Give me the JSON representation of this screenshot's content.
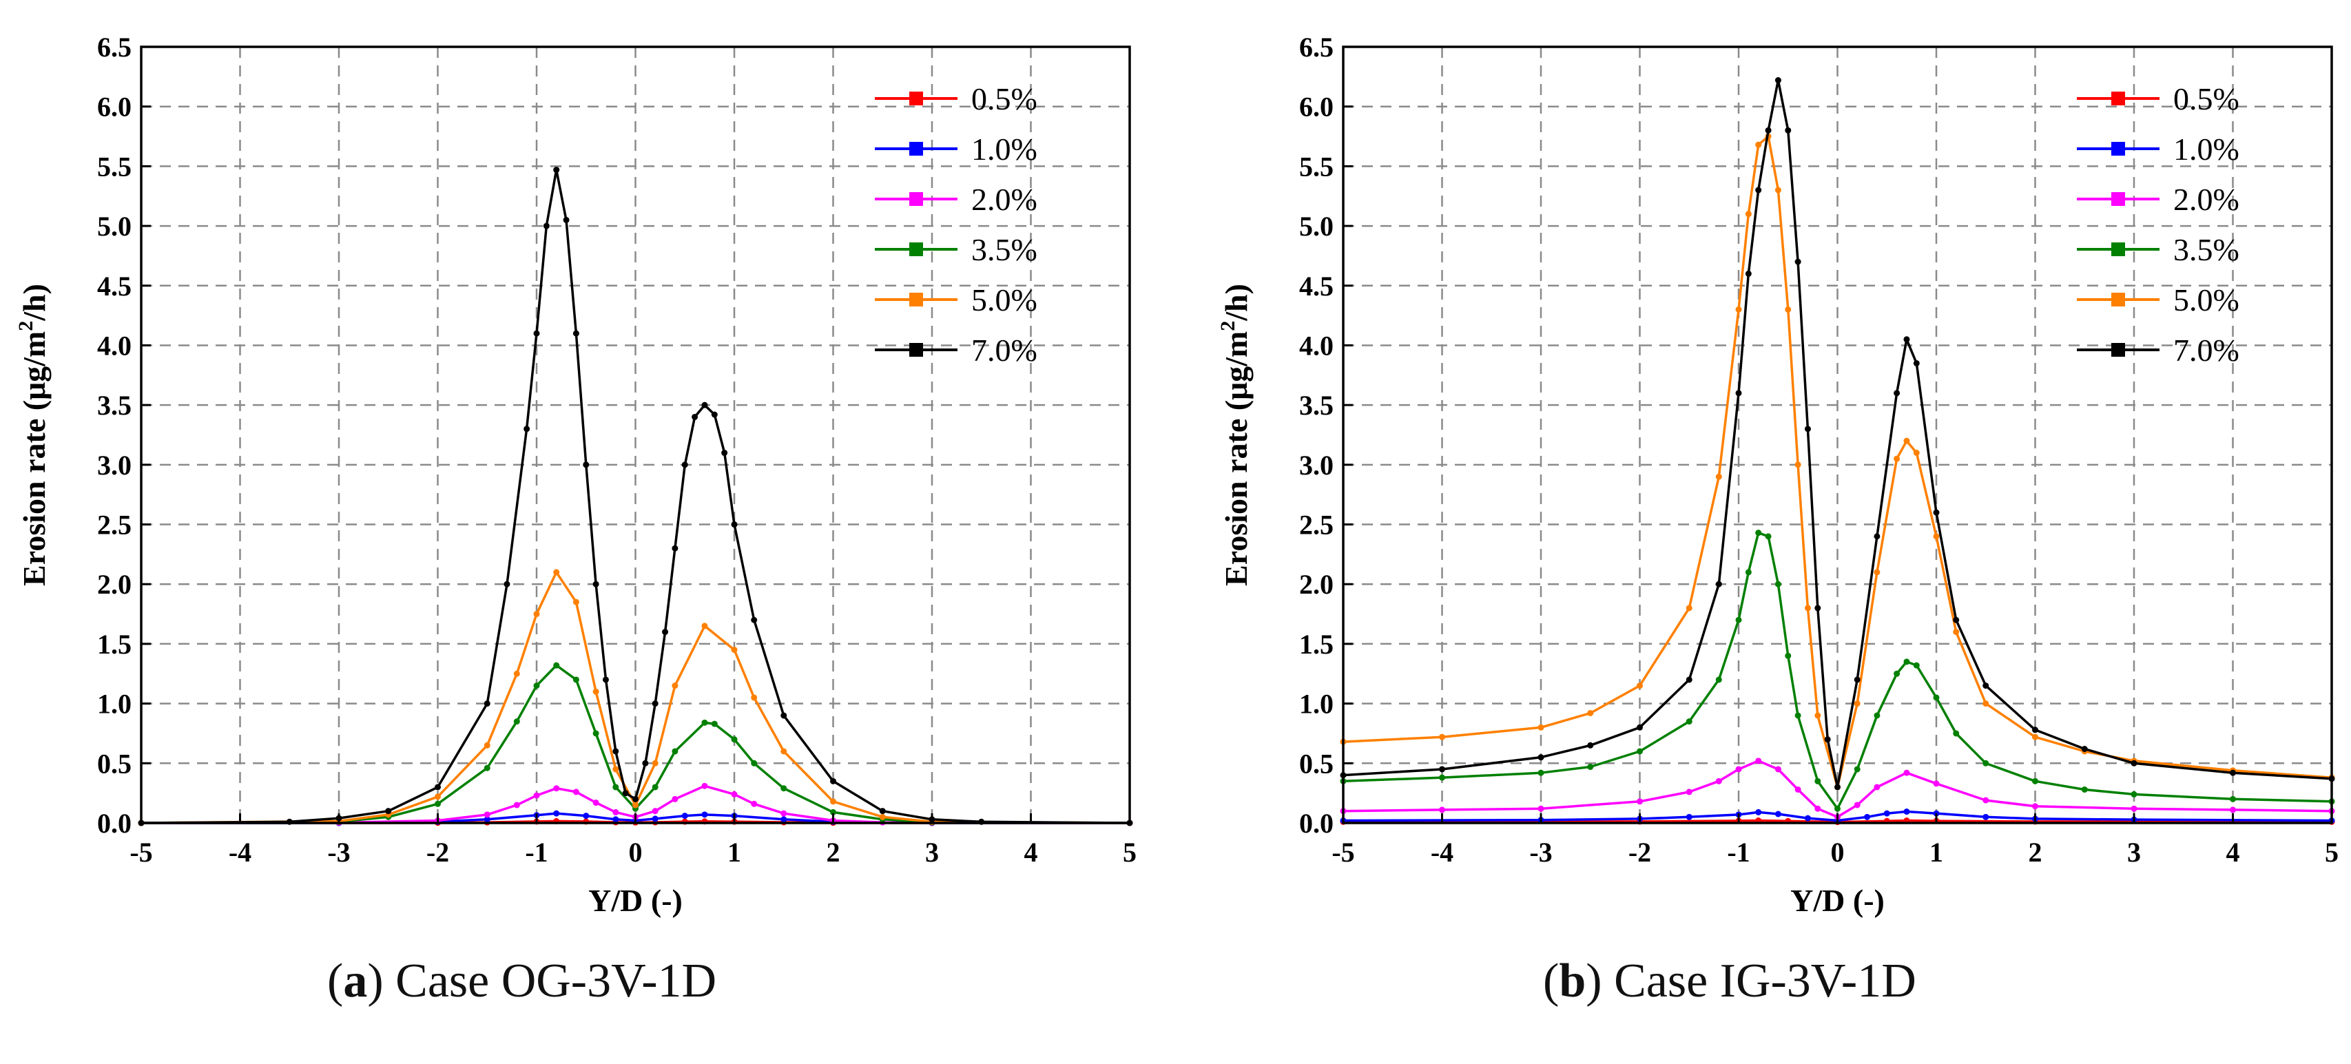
{
  "captions": [
    {
      "letter": "a",
      "open": "(",
      "close": ")",
      "text": " Case OG-3V-1D"
    },
    {
      "letter": "b",
      "open": "(",
      "close": ")",
      "text": " Case IG-3V-1D"
    }
  ],
  "colors": {
    "0.5%": "#ff0000",
    "1.0%": "#0000ff",
    "2.0%": "#ff00ff",
    "3.5%": "#008000",
    "5.0%": "#ff8000",
    "7.0%": "#000000"
  },
  "chart_data": [
    {
      "type": "line",
      "xlabel": "Y/D (-)",
      "ylabel_main": "Erosion rate (μg/m",
      "ylabel_sup": "2",
      "ylabel_tail": "/h)",
      "xlim": [
        -5,
        5
      ],
      "ylim": [
        0,
        6.5
      ],
      "xticks": [
        "-5",
        "-4",
        "-3",
        "-2",
        "-1",
        "0",
        "1",
        "2",
        "3",
        "4",
        "5"
      ],
      "yticks": [
        "0.0",
        "0.5",
        "1.0",
        "1.5",
        "2.0",
        "2.5",
        "3.0",
        "3.5",
        "4.0",
        "4.5",
        "5.0",
        "5.5",
        "6.0",
        "6.5"
      ],
      "grid": true,
      "legend": "top-right",
      "series": [
        {
          "name": "0.5%",
          "x": [
            -5,
            -3,
            -2,
            -1.5,
            -1,
            -0.8,
            -0.5,
            -0.2,
            0,
            0.2,
            0.5,
            0.7,
            1,
            1.5,
            2,
            3,
            5
          ],
          "y": [
            0,
            0,
            0.002,
            0.005,
            0.012,
            0.015,
            0.012,
            0.006,
            0.004,
            0.006,
            0.011,
            0.013,
            0.011,
            0.006,
            0.002,
            0,
            0
          ]
        },
        {
          "name": "1.0%",
          "x": [
            -5,
            -3,
            -2,
            -1.5,
            -1,
            -0.8,
            -0.5,
            -0.2,
            0,
            0.2,
            0.5,
            0.7,
            1,
            1.5,
            2,
            3,
            5
          ],
          "y": [
            0,
            0,
            0.01,
            0.03,
            0.065,
            0.08,
            0.06,
            0.03,
            0.02,
            0.035,
            0.06,
            0.07,
            0.06,
            0.03,
            0.01,
            0,
            0
          ]
        },
        {
          "name": "2.0%",
          "x": [
            -5,
            -3,
            -2,
            -1.5,
            -1.2,
            -1,
            -0.8,
            -0.6,
            -0.4,
            -0.2,
            0,
            0.2,
            0.4,
            0.7,
            1,
            1.2,
            1.5,
            2,
            2.5,
            3,
            5
          ],
          "y": [
            0,
            0.003,
            0.02,
            0.07,
            0.15,
            0.23,
            0.29,
            0.26,
            0.17,
            0.09,
            0.05,
            0.1,
            0.2,
            0.31,
            0.24,
            0.16,
            0.08,
            0.02,
            0.005,
            0.002,
            0
          ]
        },
        {
          "name": "3.5%",
          "x": [
            -5,
            -3,
            -2.5,
            -2,
            -1.5,
            -1.2,
            -1,
            -0.8,
            -0.6,
            -0.4,
            -0.2,
            0,
            0.2,
            0.4,
            0.7,
            0.8,
            1,
            1.2,
            1.5,
            2,
            2.5,
            3,
            5
          ],
          "y": [
            0,
            0.01,
            0.05,
            0.16,
            0.46,
            0.85,
            1.15,
            1.32,
            1.2,
            0.75,
            0.3,
            0.12,
            0.3,
            0.6,
            0.84,
            0.83,
            0.7,
            0.5,
            0.29,
            0.09,
            0.03,
            0.005,
            0
          ]
        },
        {
          "name": "5.0%",
          "x": [
            -5,
            -3,
            -2.5,
            -2,
            -1.5,
            -1.2,
            -1,
            -0.8,
            -0.6,
            -0.4,
            -0.2,
            0,
            0.2,
            0.4,
            0.7,
            1,
            1.2,
            1.5,
            2,
            2.5,
            3,
            5
          ],
          "y": [
            0,
            0.015,
            0.07,
            0.22,
            0.65,
            1.25,
            1.75,
            2.1,
            1.85,
            1.1,
            0.45,
            0.15,
            0.5,
            1.15,
            1.65,
            1.45,
            1.05,
            0.6,
            0.18,
            0.05,
            0.01,
            0
          ]
        },
        {
          "name": "7.0%",
          "x": [
            -5,
            -3.5,
            -3,
            -2.5,
            -2,
            -1.5,
            -1.3,
            -1.1,
            -1,
            -0.9,
            -0.8,
            -0.7,
            -0.6,
            -0.5,
            -0.4,
            -0.3,
            -0.2,
            -0.1,
            0,
            0.1,
            0.2,
            0.3,
            0.4,
            0.5,
            0.6,
            0.7,
            0.8,
            0.9,
            1,
            1.2,
            1.5,
            2,
            2.5,
            3,
            3.5,
            5
          ],
          "y": [
            0,
            0.01,
            0.04,
            0.1,
            0.3,
            1.0,
            2.0,
            3.3,
            4.1,
            5.0,
            5.47,
            5.05,
            4.1,
            3.0,
            2.0,
            1.2,
            0.6,
            0.25,
            0.2,
            0.5,
            1.0,
            1.6,
            2.3,
            3.0,
            3.4,
            3.5,
            3.42,
            3.1,
            2.5,
            1.7,
            0.9,
            0.35,
            0.1,
            0.03,
            0.01,
            0
          ]
        }
      ]
    },
    {
      "type": "line",
      "xlabel": "Y/D (-)",
      "ylabel_main": "Erosion rate (μg/m",
      "ylabel_sup": "2",
      "ylabel_tail": "/h)",
      "xlim": [
        -5,
        5
      ],
      "ylim": [
        0,
        6.5
      ],
      "xticks": [
        "-5",
        "-4",
        "-3",
        "-2",
        "-1",
        "0",
        "1",
        "2",
        "3",
        "4",
        "5"
      ],
      "yticks": [
        "0.0",
        "0.5",
        "1.0",
        "1.5",
        "2.0",
        "2.5",
        "3.0",
        "3.5",
        "4.0",
        "4.5",
        "5.0",
        "5.5",
        "6.0",
        "6.5"
      ],
      "grid": true,
      "legend": "top-right",
      "series": [
        {
          "name": "0.5%",
          "x": [
            -5,
            -2,
            -1,
            -0.8,
            -0.5,
            0,
            0.5,
            0.7,
            1,
            2,
            5
          ],
          "y": [
            0.01,
            0.012,
            0.018,
            0.02,
            0.016,
            0.008,
            0.016,
            0.02,
            0.017,
            0.012,
            0.01
          ]
        },
        {
          "name": "1.0%",
          "x": [
            -5,
            -3,
            -2,
            -1.5,
            -1,
            -0.8,
            -0.6,
            -0.3,
            0,
            0.3,
            0.5,
            0.7,
            1,
            1.5,
            2,
            3,
            5
          ],
          "y": [
            0.02,
            0.025,
            0.035,
            0.05,
            0.07,
            0.09,
            0.075,
            0.04,
            0.02,
            0.05,
            0.08,
            0.095,
            0.08,
            0.05,
            0.035,
            0.028,
            0.02
          ]
        },
        {
          "name": "2.0%",
          "x": [
            -5,
            -4,
            -3,
            -2,
            -1.5,
            -1.2,
            -1,
            -0.8,
            -0.6,
            -0.4,
            -0.2,
            0,
            0.2,
            0.4,
            0.7,
            1,
            1.5,
            2,
            3,
            4,
            5
          ],
          "y": [
            0.1,
            0.11,
            0.12,
            0.18,
            0.26,
            0.35,
            0.45,
            0.52,
            0.45,
            0.28,
            0.12,
            0.05,
            0.15,
            0.3,
            0.42,
            0.33,
            0.19,
            0.14,
            0.12,
            0.11,
            0.1
          ]
        },
        {
          "name": "3.5%",
          "x": [
            -5,
            -4,
            -3,
            -2.5,
            -2,
            -1.5,
            -1.2,
            -1,
            -0.9,
            -0.8,
            -0.7,
            -0.6,
            -0.5,
            -0.4,
            -0.2,
            0,
            0.2,
            0.4,
            0.6,
            0.7,
            0.8,
            1,
            1.2,
            1.5,
            2,
            2.5,
            3,
            4,
            5
          ],
          "y": [
            0.35,
            0.38,
            0.42,
            0.47,
            0.6,
            0.85,
            1.2,
            1.7,
            2.1,
            2.43,
            2.4,
            2.0,
            1.4,
            0.9,
            0.35,
            0.12,
            0.45,
            0.9,
            1.25,
            1.35,
            1.32,
            1.05,
            0.75,
            0.5,
            0.35,
            0.28,
            0.24,
            0.2,
            0.18
          ]
        },
        {
          "name": "5.0%",
          "x": [
            -5,
            -4,
            -3,
            -2.5,
            -2,
            -1.5,
            -1.2,
            -1,
            -0.9,
            -0.8,
            -0.7,
            -0.6,
            -0.5,
            -0.4,
            -0.3,
            -0.2,
            0,
            0.2,
            0.4,
            0.6,
            0.7,
            0.8,
            1,
            1.2,
            1.5,
            2,
            2.5,
            3,
            4,
            5
          ],
          "y": [
            0.68,
            0.72,
            0.8,
            0.92,
            1.15,
            1.8,
            2.9,
            4.3,
            5.1,
            5.68,
            5.75,
            5.3,
            4.3,
            3.0,
            1.8,
            0.9,
            0.3,
            1.0,
            2.1,
            3.05,
            3.2,
            3.1,
            2.4,
            1.6,
            1.0,
            0.72,
            0.6,
            0.52,
            0.44,
            0.38
          ]
        },
        {
          "name": "7.0%",
          "x": [
            -5,
            -4,
            -3,
            -2.5,
            -2,
            -1.5,
            -1.2,
            -1,
            -0.9,
            -0.8,
            -0.7,
            -0.6,
            -0.5,
            -0.4,
            -0.3,
            -0.2,
            -0.1,
            0,
            0.2,
            0.4,
            0.6,
            0.7,
            0.8,
            1,
            1.2,
            1.5,
            2,
            2.5,
            3,
            4,
            5
          ],
          "y": [
            0.4,
            0.45,
            0.55,
            0.65,
            0.8,
            1.2,
            2.0,
            3.6,
            4.6,
            5.3,
            5.8,
            6.22,
            5.8,
            4.7,
            3.3,
            1.8,
            0.7,
            0.3,
            1.2,
            2.4,
            3.6,
            4.05,
            3.85,
            2.6,
            1.7,
            1.15,
            0.78,
            0.62,
            0.5,
            0.42,
            0.37
          ]
        }
      ]
    }
  ]
}
